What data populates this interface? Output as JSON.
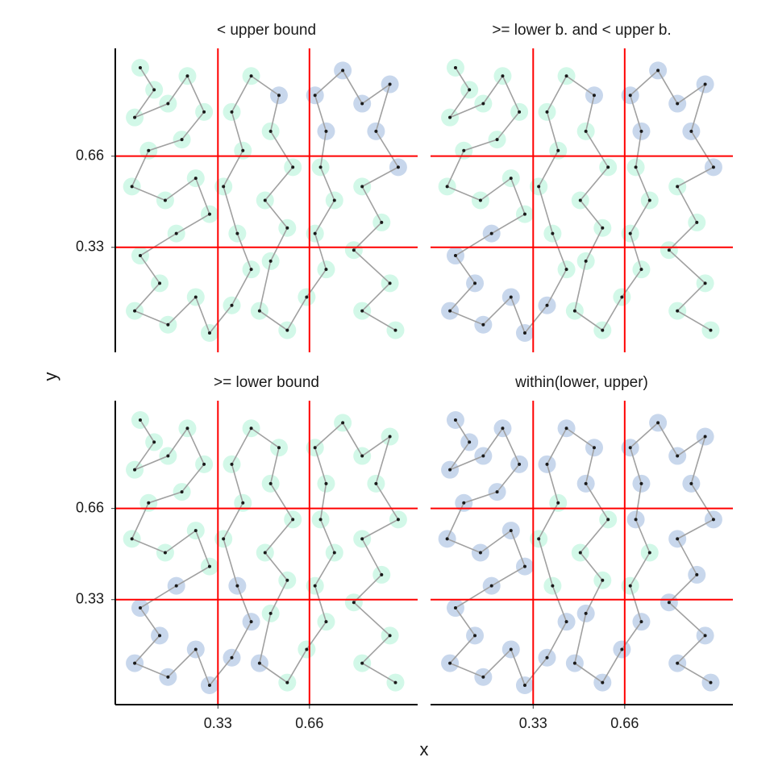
{
  "shared_axes": {
    "xlabel": "x",
    "ylabel": "y"
  },
  "chart_data": [
    {
      "type": "scatter",
      "title": "< upper bound",
      "x": [
        0.05,
        0.1,
        0.03,
        0.15,
        0.22,
        0.28,
        0.2,
        0.08,
        0.02,
        0.14,
        0.25,
        0.3,
        0.18,
        0.05,
        0.12,
        0.03,
        0.15,
        0.25,
        0.3,
        0.38,
        0.45,
        0.4,
        0.35,
        0.42,
        0.38,
        0.45,
        0.55,
        0.52,
        0.6,
        0.5,
        0.58,
        0.52,
        0.48,
        0.58,
        0.65,
        0.72,
        0.68,
        0.75,
        0.7,
        0.72,
        0.68,
        0.78,
        0.85,
        0.95,
        0.9,
        0.98,
        0.85,
        0.92,
        0.82,
        0.95,
        0.85,
        0.97
      ],
      "y": [
        0.98,
        0.9,
        0.8,
        0.85,
        0.95,
        0.82,
        0.72,
        0.68,
        0.55,
        0.5,
        0.58,
        0.45,
        0.38,
        0.3,
        0.2,
        0.1,
        0.05,
        0.15,
        0.02,
        0.12,
        0.25,
        0.38,
        0.55,
        0.68,
        0.82,
        0.95,
        0.88,
        0.75,
        0.62,
        0.5,
        0.4,
        0.28,
        0.1,
        0.03,
        0.15,
        0.25,
        0.38,
        0.5,
        0.62,
        0.75,
        0.88,
        0.97,
        0.85,
        0.92,
        0.75,
        0.62,
        0.55,
        0.42,
        0.32,
        0.2,
        0.1,
        0.03
      ],
      "highlight": [
        0,
        0,
        0,
        0,
        0,
        0,
        0,
        0,
        0,
        0,
        0,
        0,
        0,
        0,
        0,
        0,
        0,
        0,
        0,
        0,
        0,
        0,
        0,
        0,
        0,
        0,
        1,
        0,
        0,
        0,
        0,
        0,
        0,
        0,
        0,
        0,
        0,
        0,
        0,
        1,
        1,
        1,
        1,
        1,
        1,
        1,
        0,
        0,
        0,
        0,
        0,
        0
      ],
      "xlim": [
        -0.04,
        1.05
      ],
      "ylim": [
        -0.05,
        1.05
      ],
      "xticks": [
        0.33,
        0.66
      ],
      "yticks": [
        0.33,
        0.66
      ],
      "grid": true,
      "grid_color": "#ff0000",
      "point_color": "#1a1a1a",
      "line_color": "#a0a0a0",
      "colors": [
        "#b4f4d9",
        "#a4bde0"
      ]
    },
    {
      "type": "scatter",
      "title": ">= lower b. and < upper b.",
      "x": [
        0.05,
        0.1,
        0.03,
        0.15,
        0.22,
        0.28,
        0.2,
        0.08,
        0.02,
        0.14,
        0.25,
        0.3,
        0.18,
        0.05,
        0.12,
        0.03,
        0.15,
        0.25,
        0.3,
        0.38,
        0.45,
        0.4,
        0.35,
        0.42,
        0.38,
        0.45,
        0.55,
        0.52,
        0.6,
        0.5,
        0.58,
        0.52,
        0.48,
        0.58,
        0.65,
        0.72,
        0.68,
        0.75,
        0.7,
        0.72,
        0.68,
        0.78,
        0.85,
        0.95,
        0.9,
        0.98,
        0.85,
        0.92,
        0.82,
        0.95,
        0.85,
        0.97
      ],
      "y": [
        0.98,
        0.9,
        0.8,
        0.85,
        0.95,
        0.82,
        0.72,
        0.68,
        0.55,
        0.5,
        0.58,
        0.45,
        0.38,
        0.3,
        0.2,
        0.1,
        0.05,
        0.15,
        0.02,
        0.12,
        0.25,
        0.38,
        0.55,
        0.68,
        0.82,
        0.95,
        0.88,
        0.75,
        0.62,
        0.5,
        0.4,
        0.28,
        0.1,
        0.03,
        0.15,
        0.25,
        0.38,
        0.5,
        0.62,
        0.75,
        0.88,
        0.97,
        0.85,
        0.92,
        0.75,
        0.62,
        0.55,
        0.42,
        0.32,
        0.2,
        0.1,
        0.03
      ],
      "highlight": [
        0,
        0,
        0,
        0,
        0,
        0,
        0,
        0,
        0,
        0,
        0,
        0,
        1,
        1,
        1,
        1,
        1,
        1,
        1,
        1,
        0,
        0,
        0,
        0,
        0,
        0,
        1,
        0,
        0,
        0,
        0,
        0,
        0,
        0,
        0,
        0,
        0,
        0,
        0,
        1,
        1,
        1,
        1,
        1,
        1,
        1,
        0,
        0,
        0,
        0,
        0,
        0
      ],
      "xlim": [
        -0.04,
        1.05
      ],
      "ylim": [
        -0.05,
        1.05
      ],
      "xticks": [
        0.33,
        0.66
      ],
      "yticks": [
        0.33,
        0.66
      ],
      "grid": true,
      "grid_color": "#ff0000",
      "point_color": "#1a1a1a",
      "line_color": "#a0a0a0",
      "colors": [
        "#b4f4d9",
        "#a4bde0"
      ]
    },
    {
      "type": "scatter",
      "title": ">= lower bound",
      "x": [
        0.05,
        0.1,
        0.03,
        0.15,
        0.22,
        0.28,
        0.2,
        0.08,
        0.02,
        0.14,
        0.25,
        0.3,
        0.18,
        0.05,
        0.12,
        0.03,
        0.15,
        0.25,
        0.3,
        0.38,
        0.45,
        0.4,
        0.35,
        0.42,
        0.38,
        0.45,
        0.55,
        0.52,
        0.6,
        0.5,
        0.58,
        0.52,
        0.48,
        0.58,
        0.65,
        0.72,
        0.68,
        0.75,
        0.7,
        0.72,
        0.68,
        0.78,
        0.85,
        0.95,
        0.9,
        0.98,
        0.85,
        0.92,
        0.82,
        0.95,
        0.85,
        0.97
      ],
      "y": [
        0.98,
        0.9,
        0.8,
        0.85,
        0.95,
        0.82,
        0.72,
        0.68,
        0.55,
        0.5,
        0.58,
        0.45,
        0.38,
        0.3,
        0.2,
        0.1,
        0.05,
        0.15,
        0.02,
        0.12,
        0.25,
        0.38,
        0.55,
        0.68,
        0.82,
        0.95,
        0.88,
        0.75,
        0.62,
        0.5,
        0.4,
        0.28,
        0.1,
        0.03,
        0.15,
        0.25,
        0.38,
        0.5,
        0.62,
        0.75,
        0.88,
        0.97,
        0.85,
        0.92,
        0.75,
        0.62,
        0.55,
        0.42,
        0.32,
        0.2,
        0.1,
        0.03
      ],
      "highlight": [
        0,
        0,
        0,
        0,
        0,
        0,
        0,
        0,
        0,
        0,
        0,
        0,
        1,
        1,
        1,
        1,
        1,
        1,
        1,
        1,
        1,
        1,
        0,
        0,
        0,
        0,
        0,
        0,
        0,
        0,
        0,
        0,
        1,
        0,
        0,
        0,
        0,
        0,
        0,
        0,
        0,
        0,
        0,
        0,
        0,
        0,
        0,
        0,
        0,
        0,
        0,
        0
      ],
      "xlim": [
        -0.04,
        1.05
      ],
      "ylim": [
        -0.05,
        1.05
      ],
      "xticks": [
        0.33,
        0.66
      ],
      "yticks": [
        0.33,
        0.66
      ],
      "grid": true,
      "grid_color": "#ff0000",
      "point_color": "#1a1a1a",
      "line_color": "#a0a0a0",
      "colors": [
        "#b4f4d9",
        "#a4bde0"
      ]
    },
    {
      "type": "scatter",
      "title": "within(lower, upper)",
      "x": [
        0.05,
        0.1,
        0.03,
        0.15,
        0.22,
        0.28,
        0.2,
        0.08,
        0.02,
        0.14,
        0.25,
        0.3,
        0.18,
        0.05,
        0.12,
        0.03,
        0.15,
        0.25,
        0.3,
        0.38,
        0.45,
        0.4,
        0.35,
        0.42,
        0.38,
        0.45,
        0.55,
        0.52,
        0.6,
        0.5,
        0.58,
        0.52,
        0.48,
        0.58,
        0.65,
        0.72,
        0.68,
        0.75,
        0.7,
        0.72,
        0.68,
        0.78,
        0.85,
        0.95,
        0.9,
        0.98,
        0.85,
        0.92,
        0.82,
        0.95,
        0.85,
        0.97
      ],
      "y": [
        0.98,
        0.9,
        0.8,
        0.85,
        0.95,
        0.82,
        0.72,
        0.68,
        0.55,
        0.5,
        0.58,
        0.45,
        0.38,
        0.3,
        0.2,
        0.1,
        0.05,
        0.15,
        0.02,
        0.12,
        0.25,
        0.38,
        0.55,
        0.68,
        0.82,
        0.95,
        0.88,
        0.75,
        0.62,
        0.5,
        0.4,
        0.28,
        0.1,
        0.03,
        0.15,
        0.25,
        0.38,
        0.5,
        0.62,
        0.75,
        0.88,
        0.97,
        0.85,
        0.92,
        0.75,
        0.62,
        0.55,
        0.42,
        0.32,
        0.2,
        0.1,
        0.03
      ],
      "highlight": [
        1,
        1,
        1,
        1,
        1,
        1,
        1,
        1,
        1,
        1,
        1,
        1,
        1,
        1,
        1,
        1,
        1,
        1,
        1,
        1,
        1,
        0,
        0,
        0,
        1,
        1,
        1,
        1,
        0,
        0,
        0,
        1,
        1,
        1,
        1,
        1,
        0,
        0,
        1,
        1,
        1,
        1,
        1,
        1,
        1,
        1,
        1,
        1,
        1,
        1,
        1,
        1
      ],
      "xlim": [
        -0.04,
        1.05
      ],
      "ylim": [
        -0.05,
        1.05
      ],
      "xticks": [
        0.33,
        0.66
      ],
      "yticks": [
        0.33,
        0.66
      ],
      "grid": true,
      "grid_color": "#ff0000",
      "point_color": "#1a1a1a",
      "line_color": "#a0a0a0",
      "colors": [
        "#b4f4d9",
        "#a4bde0"
      ]
    }
  ]
}
